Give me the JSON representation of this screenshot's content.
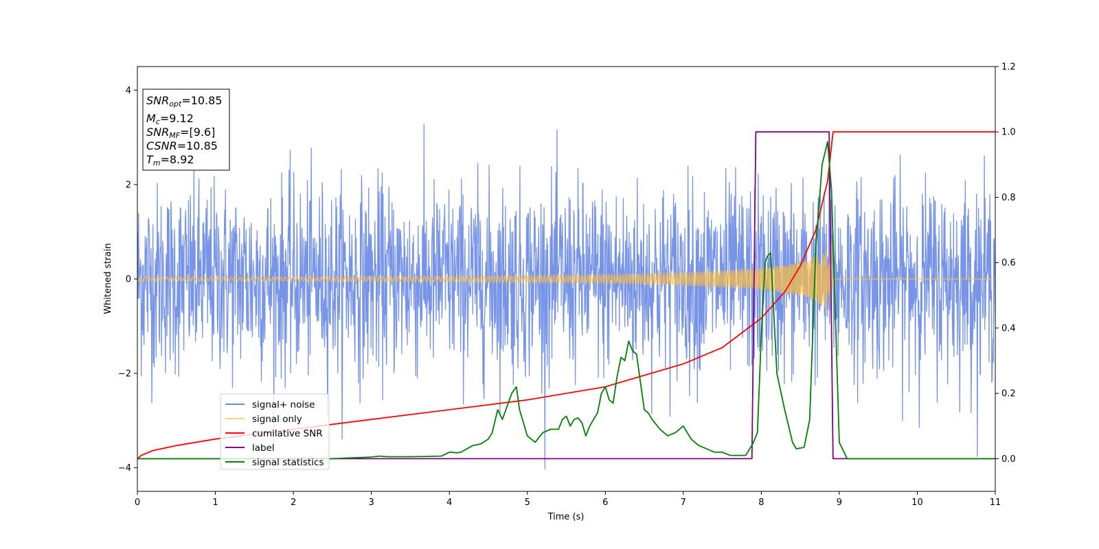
{
  "chart_data": {
    "type": "line",
    "xlabel": "Time (s)",
    "ylabel_left": "Whitened strain",
    "xlim": [
      0,
      11
    ],
    "ylim_left": [
      -4.5,
      4.5
    ],
    "ylim_right": [
      -0.1,
      1.2
    ],
    "x_ticks": [
      "0",
      "1",
      "2",
      "3",
      "4",
      "5",
      "6",
      "7",
      "8",
      "9",
      "10",
      "11"
    ],
    "y_left_ticks": [
      "−4",
      "−2",
      "0",
      "2",
      "4"
    ],
    "y_right_ticks": [
      "0.0",
      "0.2",
      "0.4",
      "0.6",
      "0.8",
      "1.0",
      "1.2"
    ],
    "grid": false,
    "legend_position": "lower-left",
    "annotation": {
      "lines": [
        {
          "base": "SNR",
          "sub": "opt",
          "value": "=10.85"
        },
        {
          "base": "M",
          "sub": "c",
          "value": "=9.12"
        },
        {
          "base": "SNR",
          "sub": "MF",
          "value": "=[9.6]"
        },
        {
          "base": "CSNR",
          "sub": "",
          "value": "=10.85"
        },
        {
          "base": "T",
          "sub": "m",
          "value": "=8.92"
        }
      ]
    },
    "series": [
      {
        "name": "signal+ noise",
        "axis": "left",
        "color": "#6b8be6",
        "kind": "noise",
        "sigma": 1.0,
        "x_range": [
          0,
          11
        ]
      },
      {
        "name": "signal only",
        "axis": "left",
        "color": "#ffbf40",
        "kind": "chirp",
        "amplitude_points": [
          [
            0,
            0.04
          ],
          [
            2,
            0.045
          ],
          [
            4,
            0.06
          ],
          [
            6,
            0.09
          ],
          [
            7,
            0.13
          ],
          [
            8,
            0.22
          ],
          [
            8.5,
            0.35
          ],
          [
            8.8,
            0.55
          ],
          [
            8.9,
            0.8
          ],
          [
            8.92,
            0.0
          ],
          [
            11,
            0.0
          ]
        ],
        "x_range": [
          0,
          11
        ]
      },
      {
        "name": "cumilative SNR",
        "axis": "right",
        "color": "#ff0000",
        "x": [
          0,
          0.05,
          0.2,
          0.5,
          1,
          2,
          3,
          4,
          5,
          6,
          7,
          7.5,
          8,
          8.3,
          8.5,
          8.7,
          8.85,
          8.92,
          11
        ],
        "y": [
          0.0,
          0.01,
          0.025,
          0.04,
          0.06,
          0.09,
          0.12,
          0.15,
          0.18,
          0.22,
          0.29,
          0.34,
          0.43,
          0.51,
          0.59,
          0.7,
          0.85,
          1.0,
          1.0
        ]
      },
      {
        "name": "label",
        "axis": "right",
        "color": "#800080",
        "x": [
          0,
          7.88,
          7.93,
          8.87,
          8.92,
          11
        ],
        "y": [
          0,
          0,
          1,
          1,
          0,
          0
        ]
      },
      {
        "name": "signal statistics",
        "axis": "right",
        "color": "#008000",
        "x": [
          0,
          2.5,
          3.0,
          3.1,
          3.2,
          3.5,
          3.7,
          3.9,
          4.0,
          4.1,
          4.15,
          4.3,
          4.4,
          4.5,
          4.55,
          4.62,
          4.68,
          4.8,
          4.86,
          4.9,
          5.0,
          5.1,
          5.2,
          5.3,
          5.4,
          5.45,
          5.5,
          5.55,
          5.6,
          5.65,
          5.7,
          5.75,
          5.8,
          5.85,
          5.9,
          5.95,
          6.0,
          6.05,
          6.1,
          6.15,
          6.2,
          6.25,
          6.3,
          6.35,
          6.4,
          6.5,
          6.55,
          6.6,
          6.7,
          6.8,
          6.9,
          7.0,
          7.1,
          7.2,
          7.3,
          7.4,
          7.5,
          7.6,
          7.7,
          7.8,
          7.9,
          7.95,
          8.0,
          8.05,
          8.08,
          8.12,
          8.2,
          8.3,
          8.4,
          8.45,
          8.55,
          8.62,
          8.7,
          8.78,
          8.85,
          8.9,
          9.0,
          9.1,
          11
        ],
        "y": [
          0.0,
          0.0,
          0.005,
          0.008,
          0.006,
          0.006,
          0.007,
          0.008,
          0.02,
          0.018,
          0.02,
          0.04,
          0.045,
          0.06,
          0.08,
          0.15,
          0.12,
          0.2,
          0.22,
          0.15,
          0.07,
          0.05,
          0.08,
          0.09,
          0.09,
          0.12,
          0.13,
          0.1,
          0.12,
          0.125,
          0.11,
          0.07,
          0.1,
          0.12,
          0.14,
          0.2,
          0.22,
          0.18,
          0.17,
          0.25,
          0.31,
          0.3,
          0.36,
          0.33,
          0.32,
          0.15,
          0.14,
          0.12,
          0.09,
          0.07,
          0.08,
          0.1,
          0.06,
          0.04,
          0.03,
          0.02,
          0.02,
          0.01,
          0.01,
          0.01,
          0.05,
          0.08,
          0.38,
          0.6,
          0.62,
          0.63,
          0.26,
          0.15,
          0.05,
          0.03,
          0.035,
          0.12,
          0.65,
          0.9,
          0.97,
          0.82,
          0.05,
          0.0,
          0.0
        ]
      }
    ]
  }
}
